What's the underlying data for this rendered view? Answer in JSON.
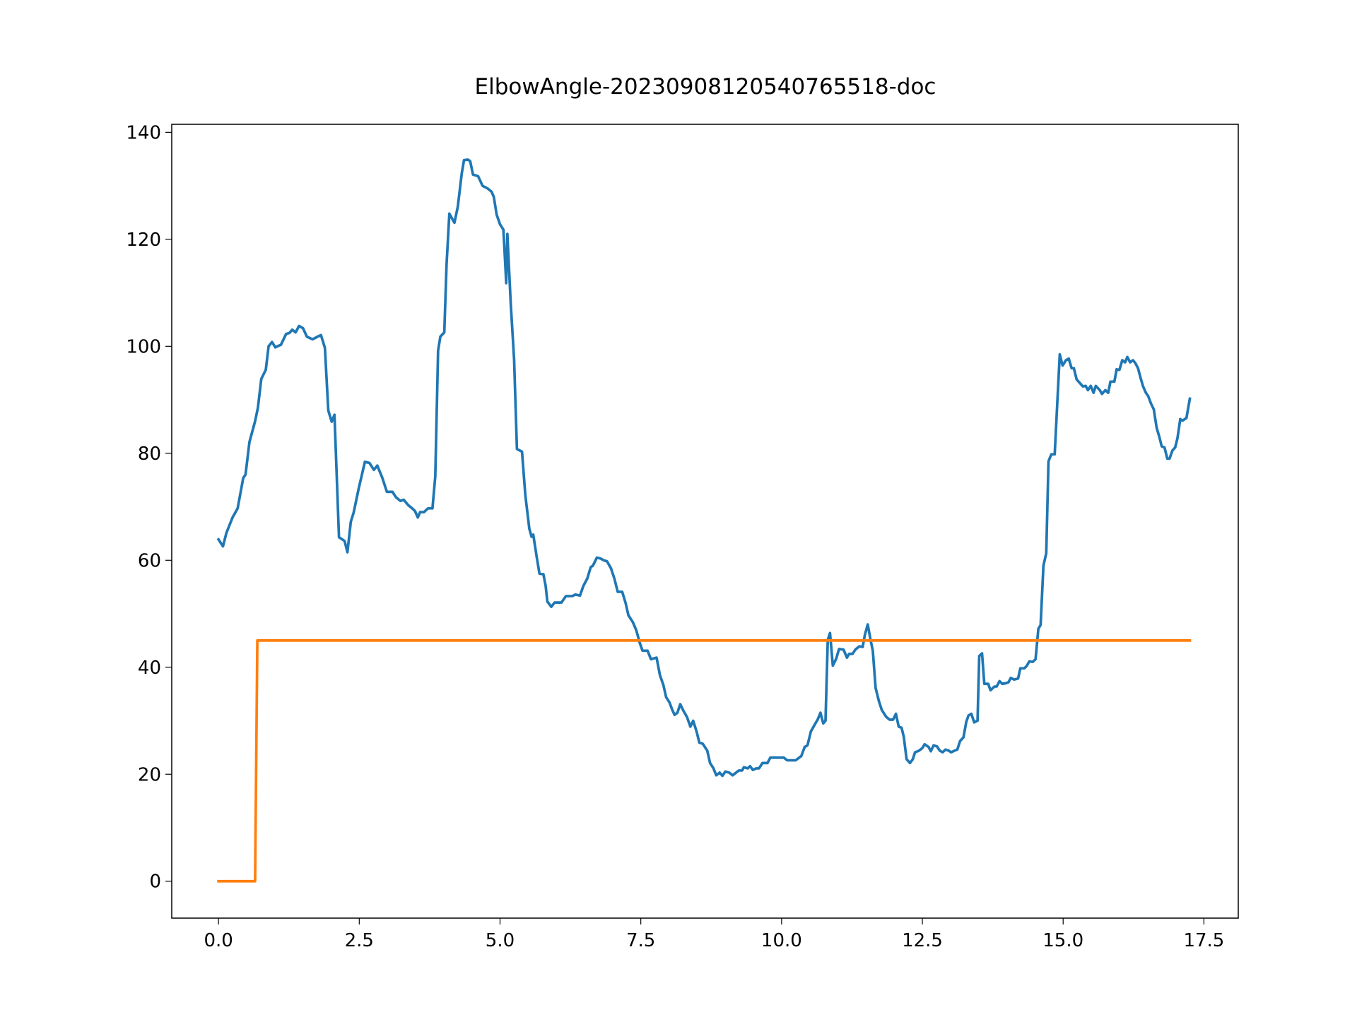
{
  "chart_data": {
    "type": "line",
    "title": "ElbowAngle-20230908120540765518-doc",
    "xlim": [
      -0.83,
      18.11
    ],
    "ylim": [
      -6.9,
      141.5
    ],
    "xticks": [
      {
        "value": 0,
        "label": "0.0"
      },
      2.5,
      {
        "value": 5,
        "label": "5.0"
      },
      7.5,
      {
        "value": 10,
        "label": "10.0"
      },
      12.5,
      {
        "value": 15,
        "label": "15.0"
      },
      17.5
    ],
    "yticks": [
      0,
      20,
      40,
      60,
      80,
      100,
      120,
      140
    ],
    "grid": false,
    "series": [
      {
        "color": "#1f77b4",
        "x": [
          0,
          0.08,
          0.14,
          0.25,
          0.34,
          0.44,
          0.48,
          0.55,
          0.65,
          0.7,
          0.76,
          0.84,
          0.89,
          0.95,
          1.01,
          1.11,
          1.2,
          1.26,
          1.31,
          1.37,
          1.43,
          1.5,
          1.57,
          1.67,
          1.76,
          1.82,
          1.89,
          1.95,
          2.01,
          2.06,
          2.14,
          2.24,
          2.29,
          2.35,
          2.4,
          2.49,
          2.6,
          2.68,
          2.76,
          2.82,
          2.91,
          2.99,
          3.09,
          3.15,
          3.23,
          3.29,
          3.37,
          3.44,
          3.49,
          3.54,
          3.58,
          3.65,
          3.72,
          3.8,
          3.85,
          3.9,
          3.94,
          4.01,
          4.05,
          4.1,
          4.19,
          4.25,
          4.32,
          4.36,
          4.43,
          4.47,
          4.52,
          4.61,
          4.69,
          4.78,
          4.85,
          4.89,
          4.94,
          5.0,
          5.06,
          5.11,
          5.13,
          5.19,
          5.25,
          5.3,
          5.39,
          5.45,
          5.52,
          5.56,
          5.59,
          5.65,
          5.7,
          5.77,
          5.81,
          5.84,
          5.91,
          5.97,
          6.09,
          6.17,
          6.28,
          6.34,
          6.42,
          6.48,
          6.55,
          6.61,
          6.65,
          6.72,
          6.79,
          6.84,
          6.9,
          6.97,
          7.03,
          7.09,
          7.17,
          7.23,
          7.28,
          7.36,
          7.42,
          7.48,
          7.53,
          7.62,
          7.68,
          7.78,
          7.84,
          7.9,
          7.95,
          8.01,
          8.06,
          8.1,
          8.15,
          8.2,
          8.26,
          8.32,
          8.38,
          8.43,
          8.49,
          8.54,
          8.6,
          8.68,
          8.73,
          8.79,
          8.84,
          8.9,
          8.95,
          9.0,
          9.07,
          9.13,
          9.18,
          9.24,
          9.3,
          9.33,
          9.4,
          9.44,
          9.49,
          9.55,
          9.6,
          9.66,
          9.75,
          9.8,
          9.96,
          10.04,
          10.1,
          10.25,
          10.35,
          10.41,
          10.46,
          10.52,
          10.6,
          10.64,
          10.69,
          10.74,
          10.78,
          10.82,
          10.86,
          10.91,
          10.97,
          11.02,
          11.1,
          11.16,
          11.2,
          11.26,
          11.31,
          11.38,
          11.44,
          11.48,
          11.53,
          11.58,
          11.62,
          11.67,
          11.73,
          11.78,
          11.86,
          11.92,
          11.98,
          12.03,
          12.08,
          12.13,
          12.17,
          12.22,
          12.28,
          12.33,
          12.37,
          12.44,
          12.5,
          12.54,
          12.61,
          12.65,
          12.7,
          12.76,
          12.81,
          12.86,
          12.91,
          12.97,
          13.01,
          13.07,
          13.12,
          13.17,
          13.23,
          13.28,
          13.32,
          13.37,
          13.42,
          13.48,
          13.51,
          13.56,
          13.6,
          13.67,
          13.71,
          13.78,
          13.82,
          13.87,
          13.92,
          13.98,
          14.03,
          14.07,
          14.13,
          14.2,
          14.24,
          14.31,
          14.35,
          14.4,
          14.46,
          14.51,
          14.56,
          14.6,
          14.65,
          14.7,
          14.74,
          14.79,
          14.85,
          14.9,
          14.94,
          14.99,
          15.05,
          15.1,
          15.15,
          15.19,
          15.24,
          15.3,
          15.35,
          15.4,
          15.44,
          15.49,
          15.54,
          15.58,
          15.65,
          15.69,
          15.75,
          15.8,
          15.84,
          15.91,
          15.95,
          16.0,
          16.05,
          16.1,
          16.14,
          16.19,
          16.24,
          16.28,
          16.33,
          16.38,
          16.42,
          16.47,
          16.51,
          16.56,
          16.61,
          16.66,
          16.71,
          16.75,
          16.8,
          16.85,
          16.89,
          16.94,
          16.99,
          17.03,
          17.08,
          17.12,
          17.19,
          17.25
        ],
        "values": [
          63.9,
          62.6,
          65.1,
          68,
          69.7,
          75.4,
          76,
          82.1,
          86,
          88.5,
          93.9,
          95.6,
          100,
          100.8,
          99.8,
          100.3,
          102.3,
          102.5,
          103.1,
          102.6,
          103.8,
          103.4,
          101.8,
          101.3,
          101.8,
          102.1,
          99.7,
          88,
          85.9,
          87.2,
          64.3,
          63.6,
          61.5,
          67.2,
          68.9,
          73.4,
          78.4,
          78.2,
          76.9,
          77.7,
          75.4,
          72.8,
          72.8,
          71.8,
          71.1,
          71.3,
          70.3,
          69.7,
          69.2,
          68,
          69,
          69,
          69.7,
          69.7,
          75.7,
          99.2,
          101.8,
          102.6,
          115.2,
          124.8,
          123.1,
          126.1,
          132.3,
          134.8,
          134.9,
          134.6,
          132.1,
          131.8,
          130,
          129.5,
          128.9,
          127.9,
          124.6,
          122.8,
          121.8,
          111.8,
          121,
          108,
          97.5,
          80.8,
          80.3,
          72.1,
          65.9,
          64.4,
          64.8,
          60.7,
          57.5,
          57.4,
          55.2,
          52.3,
          51.3,
          52.1,
          52.1,
          53.3,
          53.3,
          53.6,
          53.4,
          55.2,
          56.6,
          58.7,
          59,
          60.5,
          60.3,
          60,
          59.8,
          58.5,
          56.6,
          54.1,
          54.1,
          52,
          49.7,
          48.4,
          46.9,
          44.6,
          43.1,
          43.1,
          41.5,
          41.8,
          38.5,
          36.7,
          34.4,
          33.4,
          32,
          31.1,
          31.5,
          33.1,
          31.8,
          30.7,
          28.9,
          30,
          28,
          25.9,
          25.7,
          24.4,
          22.1,
          21.1,
          19.8,
          20.3,
          19.7,
          20.5,
          20.3,
          19.8,
          20.2,
          20.7,
          20.7,
          21.3,
          21.1,
          21.5,
          20.8,
          21.1,
          21.1,
          22.1,
          22.1,
          23.1,
          23.1,
          23.1,
          22.6,
          22.6,
          23.4,
          25.1,
          25.4,
          28,
          29.5,
          30.2,
          31.5,
          29.5,
          30,
          45.1,
          46.4,
          40.3,
          41.6,
          43.4,
          43.3,
          41.8,
          42.5,
          42.5,
          43.3,
          43.9,
          43.8,
          46.1,
          48,
          45.1,
          43.1,
          36.1,
          33.6,
          32,
          30.7,
          30.2,
          30.2,
          31.3,
          28.9,
          28.7,
          27,
          22.8,
          22.1,
          22.8,
          24.1,
          24.4,
          24.9,
          25.6,
          25.1,
          24.3,
          25.4,
          25.2,
          24.4,
          24.1,
          24.6,
          24.4,
          24.1,
          24.4,
          24.6,
          26.2,
          26.9,
          29.8,
          31,
          31.3,
          29.7,
          30,
          42.1,
          42.6,
          36.9,
          36.9,
          35.7,
          36.4,
          36.4,
          37.4,
          36.9,
          37,
          37.2,
          38,
          37.7,
          37.9,
          39.8,
          39.8,
          40.2,
          41.1,
          41,
          41.5,
          47.2,
          47.9,
          59,
          61.3,
          78.5,
          79.8,
          79.8,
          90.2,
          98.5,
          96.4,
          97.4,
          97.7,
          95.9,
          95.9,
          93.8,
          93.1,
          92.5,
          92.6,
          91.8,
          92.6,
          91.3,
          92.6,
          91.8,
          91.1,
          91.8,
          91.3,
          93.4,
          93.4,
          95.7,
          95.6,
          97.4,
          97,
          98,
          97,
          97.4,
          96.9,
          95.9,
          93.9,
          92.5,
          91.3,
          90.7,
          89.3,
          88.2,
          84.8,
          83,
          81.3,
          81.1,
          79,
          79,
          80.5,
          81.1,
          82.8,
          86.4,
          86.1,
          86.6,
          90.2
        ]
      },
      {
        "color": "#ff7f0e",
        "x": [
          0,
          0.65,
          0.69,
          17.25
        ],
        "values": [
          0,
          0,
          45,
          45
        ]
      }
    ]
  }
}
